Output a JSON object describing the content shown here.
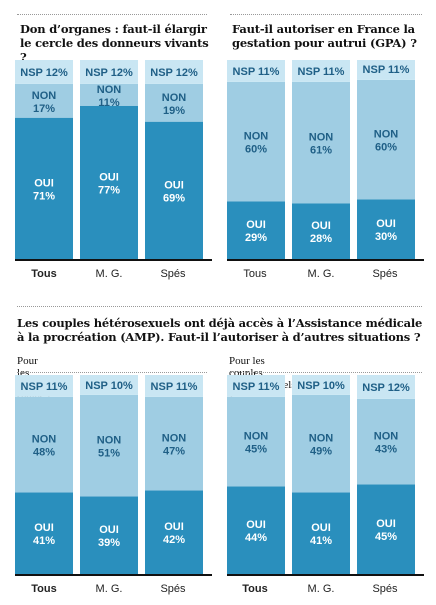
{
  "headline": "Les couples hétérosexuels ont déjà accès à l’Assistance médicale à la procréation (AMP). Faut-il l’autoriser à d’autres situations ?",
  "colors": {
    "oui": "#2a8fbd",
    "non": "#9fcde3",
    "nsp": "#c9e6f3",
    "label_text": "#1f5f86",
    "oui_text": "#ffffff"
  },
  "chart_data": [
    {
      "type": "bar",
      "stacked": true,
      "title": "Don d’organes : faut-il élargir le cercle des donneurs vivants ?",
      "categories": [
        "Tous",
        "M. G.",
        "Spés"
      ],
      "series": [
        {
          "name": "OUI",
          "values": [
            71,
            77,
            69
          ]
        },
        {
          "name": "NON",
          "values": [
            17,
            11,
            19
          ]
        },
        {
          "name": "NSP",
          "values": [
            12,
            12,
            12
          ]
        }
      ],
      "ylim": [
        0,
        100
      ]
    },
    {
      "type": "bar",
      "stacked": true,
      "title": "Faut-il autoriser en France la gestation pour autrui (GPA) ?",
      "categories": [
        "Tous",
        "M. G.",
        "Spés"
      ],
      "series": [
        {
          "name": "OUI",
          "values": [
            29,
            28,
            30
          ]
        },
        {
          "name": "NON",
          "values": [
            60,
            61,
            60
          ]
        },
        {
          "name": "NSP",
          "values": [
            11,
            11,
            11
          ]
        }
      ],
      "ylim": [
        0,
        100
      ]
    },
    {
      "type": "bar",
      "stacked": true,
      "title": "Pour les femmes seules ?",
      "categories": [
        "Tous",
        "M. G.",
        "Spés"
      ],
      "series": [
        {
          "name": "OUI",
          "values": [
            41,
            39,
            42
          ]
        },
        {
          "name": "NON",
          "values": [
            48,
            51,
            47
          ]
        },
        {
          "name": "NSP",
          "values": [
            11,
            10,
            11
          ]
        }
      ],
      "ylim": [
        0,
        100
      ]
    },
    {
      "type": "bar",
      "stacked": true,
      "title": "Pour les couples d’homosexuels ?",
      "categories": [
        "Tous",
        "M. G.",
        "Spés"
      ],
      "series": [
        {
          "name": "OUI",
          "values": [
            44,
            41,
            45
          ]
        },
        {
          "name": "NON",
          "values": [
            45,
            49,
            43
          ]
        },
        {
          "name": "NSP",
          "values": [
            11,
            10,
            12
          ]
        }
      ],
      "ylim": [
        0,
        100
      ]
    }
  ]
}
